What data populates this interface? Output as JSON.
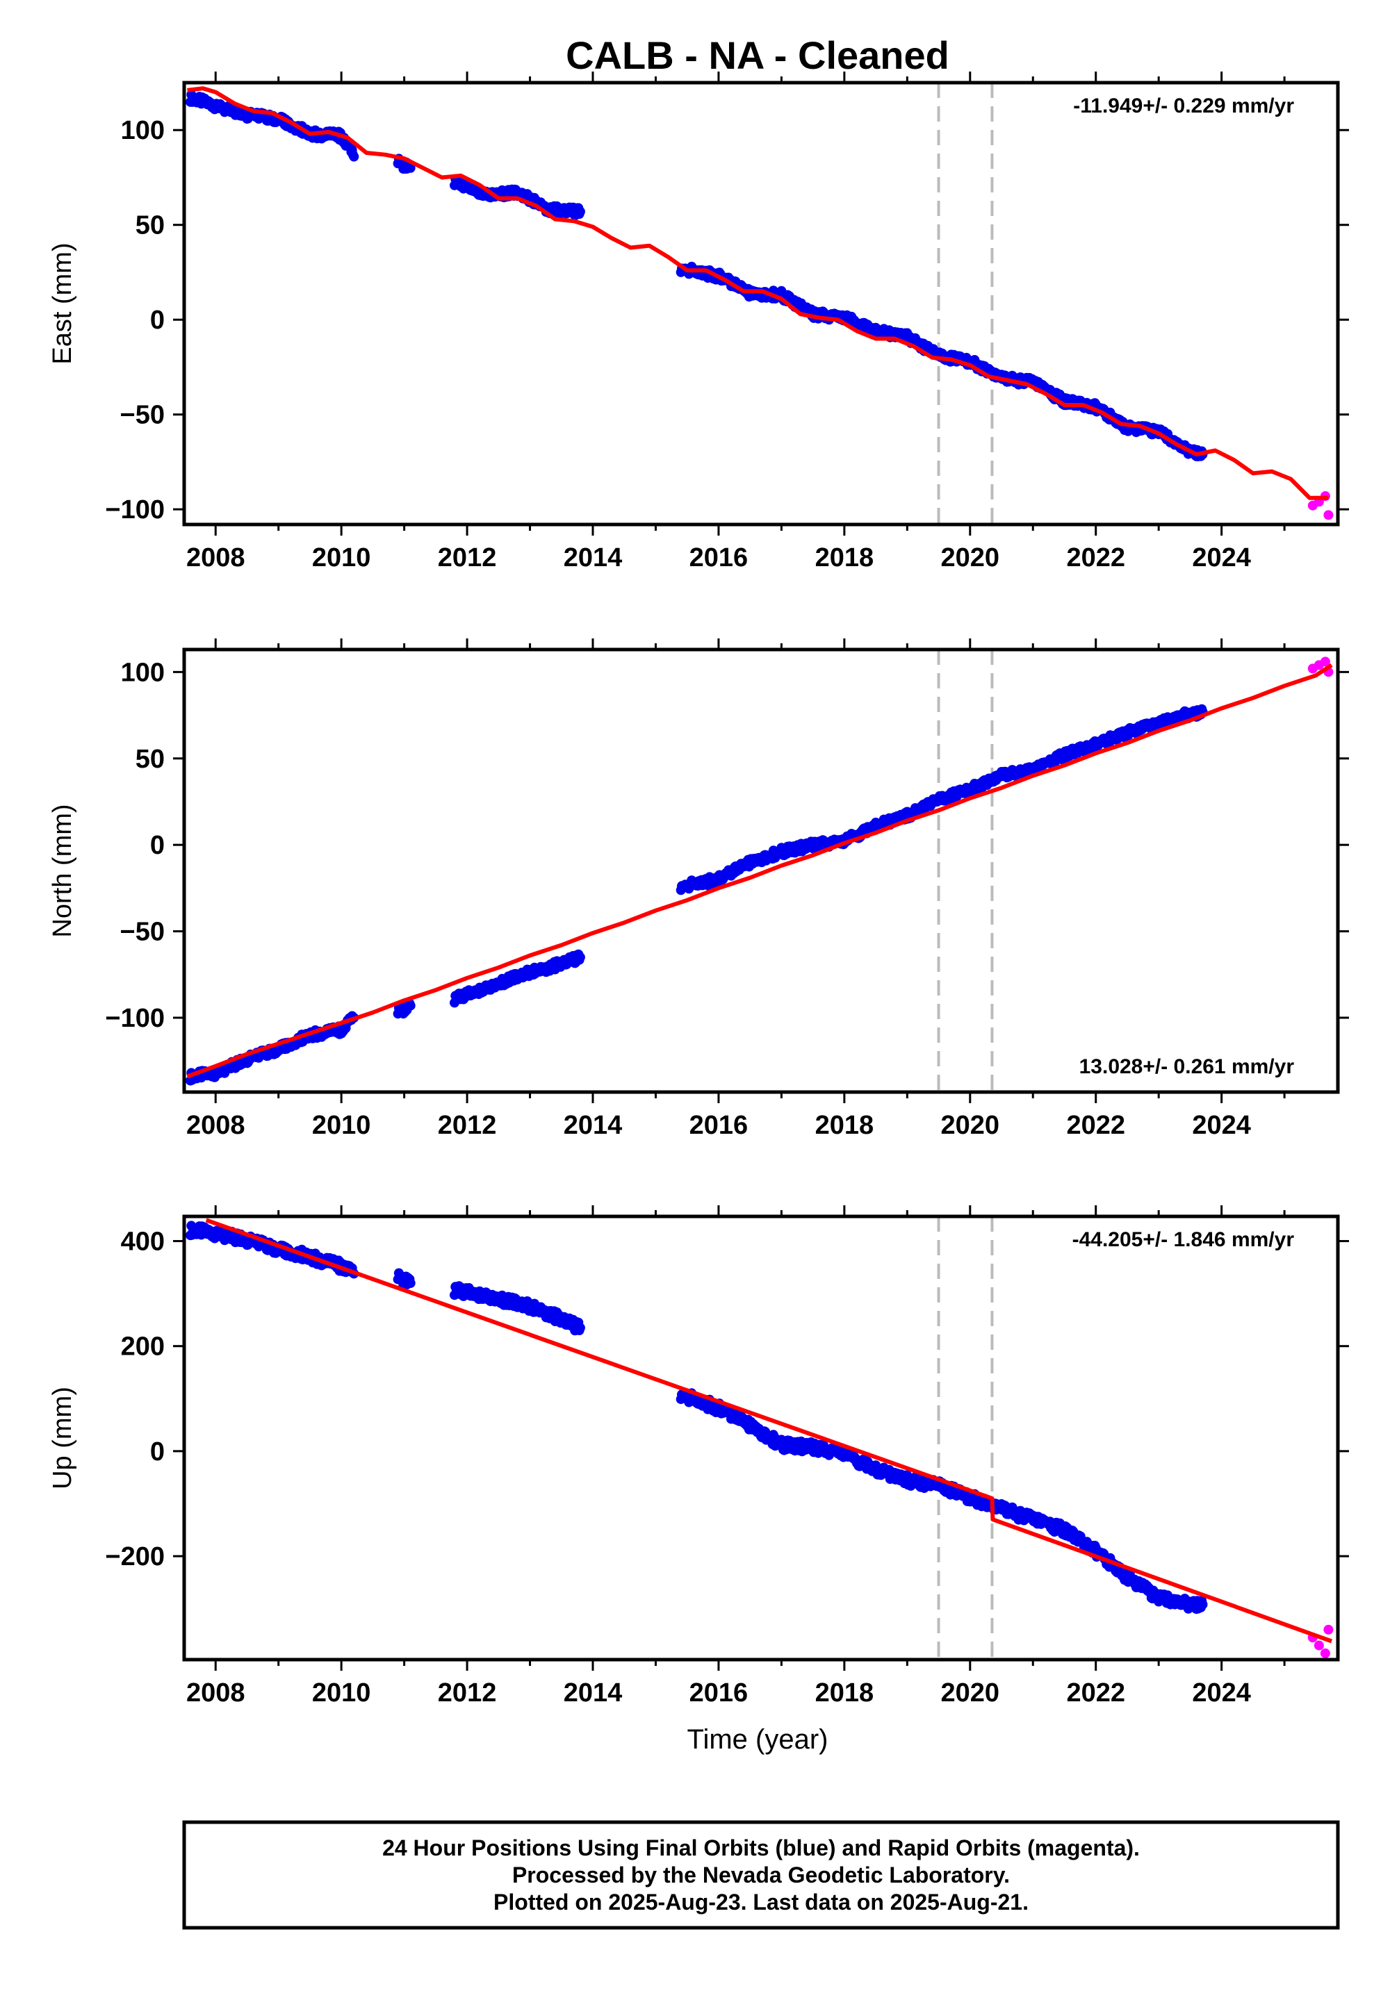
{
  "title": "CALB  - NA - Cleaned",
  "xlabel": "Time (year)",
  "x_ticks": [
    2008,
    2010,
    2012,
    2014,
    2016,
    2018,
    2020,
    2022,
    2024
  ],
  "xlim": [
    2007.5,
    2025.85
  ],
  "vlines": [
    2019.5,
    2020.35
  ],
  "colors": {
    "final": "#0000ee",
    "rapid": "#ff00ff",
    "model": "#ff0000",
    "vline": "#bbbbbb"
  },
  "legend_box": {
    "line1": "24 Hour Positions Using Final Orbits (blue) and Rapid Orbits (magenta).",
    "line2": "Processed by the Nevada Geodetic Laboratory.",
    "line3": "Plotted on 2025-Aug-23. Last data on 2025-Aug-21."
  },
  "chart_data": [
    {
      "type": "scatter",
      "component": "east",
      "ylabel": "East (mm)",
      "ylim": [
        -108,
        125
      ],
      "y_ticks": [
        -100,
        -50,
        0,
        50,
        100
      ],
      "y_tick_labels": [
        "−100",
        "−50",
        "0",
        "50",
        "100"
      ],
      "rate_label": "-11.949+/- 0.229 mm/yr",
      "rate_position": "top-right",
      "segments": [
        {
          "x": [
            2007.6,
            2008.0,
            2008.5,
            2009.0,
            2009.5,
            2010.0,
            2010.2
          ],
          "y": [
            117,
            113,
            108,
            106,
            98,
            97,
            86
          ]
        },
        {
          "x": [
            2010.9,
            2011.1
          ],
          "y": [
            83,
            80
          ]
        },
        {
          "x": [
            2011.8,
            2012.3,
            2012.8,
            2013.3,
            2013.8
          ],
          "y": [
            73,
            66,
            67,
            58,
            57
          ]
        },
        {
          "x": [
            2015.4,
            2016.0,
            2016.5,
            2017.0,
            2017.5,
            2018.0,
            2018.5,
            2019.0,
            2019.5,
            2020.0,
            2020.5,
            2021.0,
            2021.5,
            2022.0,
            2022.5,
            2023.0,
            2023.4,
            2023.7
          ],
          "y": [
            27,
            23,
            14,
            13,
            3,
            1,
            -6,
            -9,
            -19,
            -22,
            -31,
            -33,
            -43,
            -46,
            -57,
            -59,
            -68,
            -71
          ]
        }
      ],
      "rapid": {
        "x": [
          2025.45,
          2025.55,
          2025.65,
          2025.7
        ],
        "y": [
          -98,
          -96,
          -93,
          -103
        ]
      },
      "model": {
        "x": [
          2007.55,
          2007.8,
          2008.0,
          2008.3,
          2008.6,
          2008.9,
          2009.2,
          2009.5,
          2009.8,
          2010.1,
          2010.4,
          2010.7,
          2011.0,
          2011.3,
          2011.6,
          2011.9,
          2012.2,
          2012.5,
          2012.8,
          2013.1,
          2013.4,
          2013.7,
          2014.0,
          2014.3,
          2014.6,
          2014.9,
          2015.2,
          2015.5,
          2015.8,
          2016.1,
          2016.4,
          2016.7,
          2017.0,
          2017.3,
          2017.6,
          2017.9,
          2018.2,
          2018.5,
          2018.8,
          2019.1,
          2019.4,
          2019.7,
          2020.0,
          2020.3,
          2020.6,
          2020.9,
          2021.2,
          2021.5,
          2021.8,
          2022.1,
          2022.4,
          2022.7,
          2023.0,
          2023.3,
          2023.6,
          2023.9,
          2024.2,
          2024.5,
          2024.8,
          2025.1,
          2025.4,
          2025.7
        ],
        "y": [
          121,
          122,
          120,
          114,
          110,
          109,
          104,
          98,
          99,
          96,
          88,
          87,
          85,
          80,
          75,
          76,
          71,
          64,
          64,
          60,
          53,
          52,
          49,
          43,
          38,
          39,
          33,
          26,
          26,
          21,
          15,
          15,
          11,
          3,
          1,
          0,
          -6,
          -10,
          -10,
          -14,
          -20,
          -21,
          -24,
          -30,
          -32,
          -34,
          -39,
          -45,
          -45,
          -49,
          -55,
          -56,
          -60,
          -66,
          -71,
          -69,
          -74,
          -81,
          -80,
          -84,
          -94,
          -94
        ]
      }
    },
    {
      "type": "scatter",
      "component": "north",
      "ylabel": "North (mm)",
      "ylim": [
        -143,
        113
      ],
      "y_ticks": [
        -100,
        -50,
        0,
        50,
        100
      ],
      "y_tick_labels": [
        "−100",
        "−50",
        "0",
        "50",
        "100"
      ],
      "rate_label": "13.028+/- 0.261 mm/yr",
      "rate_position": "bottom-right",
      "segments": [
        {
          "x": [
            2007.6,
            2008.0,
            2008.5,
            2009.0,
            2009.5,
            2010.0,
            2010.2
          ],
          "y": [
            -134,
            -132,
            -124,
            -118,
            -110,
            -107,
            -100
          ]
        },
        {
          "x": [
            2010.9,
            2011.1
          ],
          "y": [
            -97,
            -93
          ]
        },
        {
          "x": [
            2011.8,
            2012.3,
            2012.8,
            2013.3,
            2013.8
          ],
          "y": [
            -89,
            -83,
            -76,
            -71,
            -65
          ]
        },
        {
          "x": [
            2015.4,
            2016.0,
            2016.5,
            2017.0,
            2017.5,
            2018.0,
            2018.5,
            2019.0,
            2019.5,
            2020.0,
            2020.5,
            2021.0,
            2021.5,
            2022.0,
            2022.5,
            2023.0,
            2023.4,
            2023.7
          ],
          "y": [
            -24,
            -20,
            -10,
            -4,
            0,
            2,
            11,
            17,
            26,
            32,
            40,
            43,
            52,
            58,
            65,
            70,
            75,
            77
          ]
        }
      ],
      "rapid": {
        "x": [
          2025.45,
          2025.55,
          2025.65,
          2025.7
        ],
        "y": [
          102,
          104,
          106,
          100
        ]
      },
      "model": {
        "x": [
          2007.55,
          2008.0,
          2008.5,
          2009.0,
          2009.5,
          2010.0,
          2010.5,
          2011.0,
          2011.5,
          2012.0,
          2012.5,
          2013.0,
          2013.5,
          2014.0,
          2014.5,
          2015.0,
          2015.5,
          2016.0,
          2016.5,
          2017.0,
          2017.5,
          2018.0,
          2018.5,
          2019.0,
          2019.5,
          2020.0,
          2020.5,
          2021.0,
          2021.5,
          2022.0,
          2022.5,
          2023.0,
          2023.5,
          2024.0,
          2024.5,
          2025.0,
          2025.5,
          2025.75
        ],
        "y": [
          -134,
          -128,
          -121,
          -115,
          -109,
          -103,
          -97,
          -90,
          -84,
          -77,
          -71,
          -64,
          -58,
          -51,
          -45,
          -38,
          -32,
          -25,
          -19,
          -12,
          -6,
          1,
          7,
          14,
          20,
          27,
          33,
          40,
          46,
          53,
          59,
          66,
          72,
          79,
          85,
          92,
          98,
          104
        ]
      }
    },
    {
      "type": "scatter",
      "component": "up",
      "ylabel": "Up (mm)",
      "ylim": [
        -397,
        447
      ],
      "y_ticks": [
        -200,
        0,
        200,
        400
      ],
      "y_tick_labels": [
        "−200",
        "0",
        "200",
        "400"
      ],
      "rate_label": "-44.205+/- 1.846 mm/yr",
      "rate_position": "top-right",
      "segments": [
        {
          "x": [
            2007.6,
            2008.0,
            2008.5,
            2009.0,
            2009.5,
            2010.0,
            2010.2
          ],
          "y": [
            421,
            415,
            402,
            385,
            370,
            352,
            338
          ]
        },
        {
          "x": [
            2010.9,
            2011.1
          ],
          "y": [
            330,
            320
          ]
        },
        {
          "x": [
            2011.8,
            2012.3,
            2012.8,
            2013.3,
            2013.8
          ],
          "y": [
            307,
            295,
            282,
            262,
            235
          ]
        },
        {
          "x": [
            2015.4,
            2016.0,
            2016.5,
            2017.0,
            2017.5,
            2018.0,
            2018.5,
            2019.0,
            2019.5,
            2020.0,
            2020.5,
            2021.0,
            2021.5,
            2022.0,
            2022.5,
            2023.0,
            2023.4,
            2023.7
          ],
          "y": [
            108,
            82,
            50,
            12,
            8,
            -5,
            -35,
            -55,
            -65,
            -88,
            -110,
            -130,
            -150,
            -190,
            -240,
            -280,
            -290,
            -292
          ]
        }
      ],
      "rapid": {
        "x": [
          2025.45,
          2025.55,
          2025.65,
          2025.7
        ],
        "y": [
          -355,
          -370,
          -385,
          -340
        ]
      },
      "model": {
        "x": [
          2007.85,
          2020.35,
          2020.36,
          2025.75
        ],
        "y": [
          440,
          -90,
          -130,
          -362
        ]
      }
    }
  ]
}
